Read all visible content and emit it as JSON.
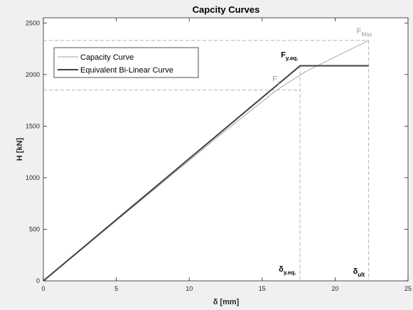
{
  "chart_data": {
    "type": "line",
    "title": "Capcity Curves",
    "xlabel": "δ [mm]",
    "ylabel": "H [kN]",
    "xlim": [
      0,
      25
    ],
    "ylim": [
      0,
      2550
    ],
    "x_ticks": [
      "0",
      "5",
      "10",
      "15",
      "20",
      "25"
    ],
    "y_ticks": [
      "0",
      "500",
      "1000",
      "1500",
      "2000",
      "2500"
    ],
    "grid": false,
    "legend_position": "top-left",
    "series": [
      {
        "name": "Capacity Curve",
        "color": "#b3b3b3",
        "x": [
          0,
          4,
          8,
          12,
          16,
          18,
          20,
          22.3
        ],
        "y": [
          0,
          467,
          933,
          1400,
          1850,
          2030,
          2170,
          2330
        ]
      },
      {
        "name": "Equivalent Bi-Linear Curve",
        "color": "#404040",
        "x": [
          0,
          17.6,
          22.3
        ],
        "y": [
          0,
          2085,
          2085
        ]
      }
    ],
    "annotations": {
      "fmax": {
        "main": "F",
        "sub": "Max",
        "x": 22.3,
        "y": 2330
      },
      "fy": {
        "main": "F",
        "sub": "y",
        "x": 15.9,
        "y": 1850
      },
      "fyeq": {
        "main": "F",
        "sub": "y.eq.",
        "x": 17.6,
        "y": 2085
      },
      "dyeq": {
        "main": "δ",
        "sub": "y.eq.",
        "x": 17.6
      },
      "dult": {
        "main": "δ",
        "sub": "ult",
        "x": 22.3
      }
    }
  }
}
